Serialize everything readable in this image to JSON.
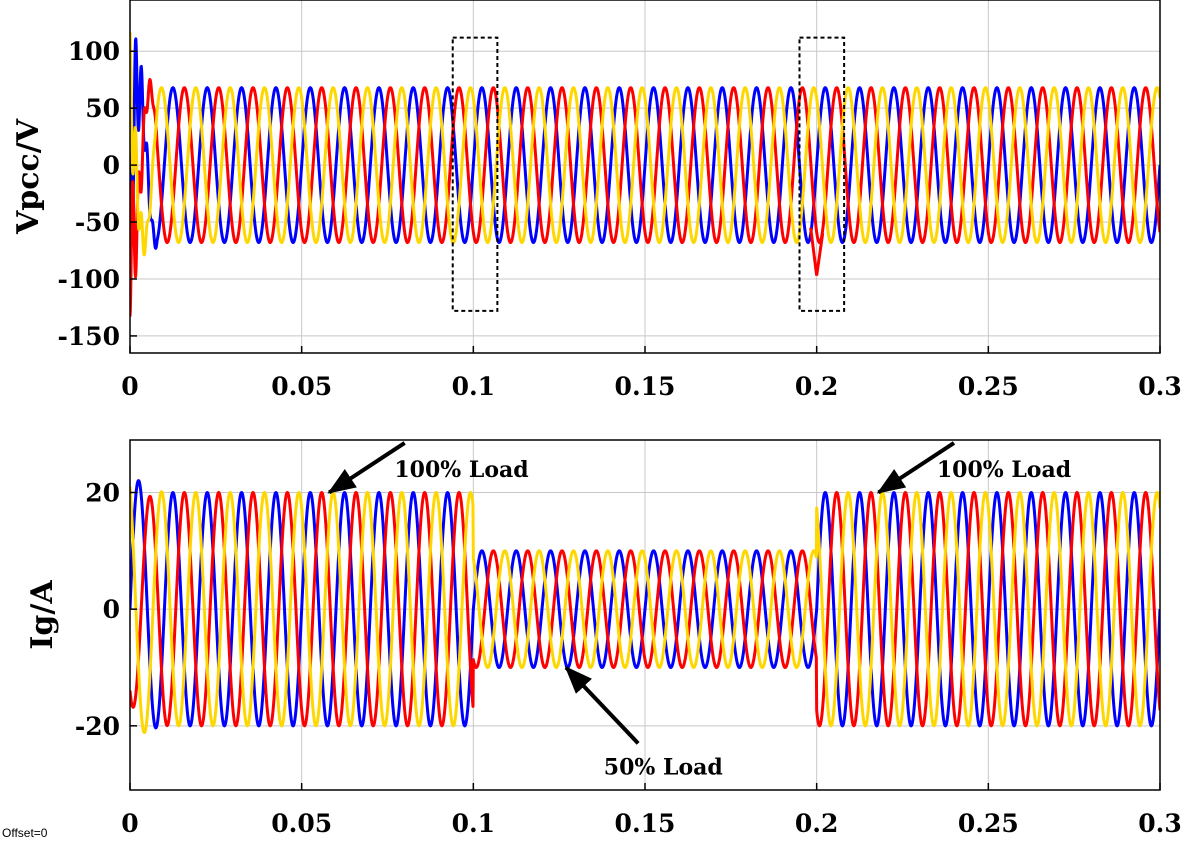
{
  "footer": {
    "offset_text": "Offset=0"
  },
  "colors": {
    "phase_a": "#0000ff",
    "phase_b": "#ff0000",
    "phase_c": "#ffd700",
    "grid": "#c8c8c8",
    "axes": "#000000"
  },
  "chart_data": [
    {
      "type": "line",
      "title": "",
      "xlabel": "",
      "ylabel": "Vpcc/V",
      "xlim": [
        0,
        0.3
      ],
      "ylim": [
        -165,
        145
      ],
      "xticks": [
        0,
        0.05,
        0.1,
        0.15,
        0.2,
        0.25,
        0.3
      ],
      "xtick_labels": [
        "0",
        "0.05",
        "0.1",
        "0.15",
        "0.2",
        "0.25",
        "0.3"
      ],
      "yticks": [
        -150,
        -100,
        -50,
        0,
        50,
        100
      ],
      "ytick_labels": [
        "-150",
        "-100",
        "-50",
        "0",
        "50",
        "100"
      ],
      "grid": true,
      "frequency_hz": 100,
      "series": [
        {
          "color": "#0000ff",
          "phase_deg": 0,
          "segments": [
            {
              "t": [
                0,
                0.3
              ],
              "amplitude": 68
            }
          ],
          "startup_transient_peak": 102
        },
        {
          "color": "#ff0000",
          "phase_deg": -120,
          "segments": [
            {
              "t": [
                0,
                0.3
              ],
              "amplitude": 68
            }
          ],
          "startup_transient_peak": -133
        },
        {
          "color": "#ffd700",
          "phase_deg": 120,
          "segments": [
            {
              "t": [
                0,
                0.3
              ],
              "amplitude": 68
            }
          ],
          "startup_transient_peak": 117
        }
      ],
      "highlight_boxes": [
        {
          "x": [
            0.094,
            0.107
          ],
          "y": [
            -128,
            112
          ]
        },
        {
          "x": [
            0.195,
            0.208
          ],
          "y": [
            -128,
            112
          ]
        }
      ],
      "transient_dips": [
        {
          "t": 0.2,
          "min": -97
        }
      ]
    },
    {
      "type": "line",
      "title": "",
      "xlabel": "",
      "ylabel": "Ig/A",
      "xlim": [
        0,
        0.3
      ],
      "ylim": [
        -31,
        29
      ],
      "xticks": [
        0,
        0.05,
        0.1,
        0.15,
        0.2,
        0.25,
        0.3
      ],
      "xtick_labels": [
        "0",
        "0.05",
        "0.1",
        "0.15",
        "0.2",
        "0.25",
        "0.3"
      ],
      "yticks": [
        -20,
        0,
        20
      ],
      "ytick_labels": [
        "-20",
        "0",
        "20"
      ],
      "grid": true,
      "frequency_hz": 100,
      "series": [
        {
          "color": "#0000ff",
          "phase_deg": 0,
          "segments": [
            {
              "t": [
                0,
                0.1
              ],
              "amplitude": 20
            },
            {
              "t": [
                0.1,
                0.2
              ],
              "amplitude": 10
            },
            {
              "t": [
                0.2,
                0.3
              ],
              "amplitude": 20
            }
          ]
        },
        {
          "color": "#ff0000",
          "phase_deg": -120,
          "segments": [
            {
              "t": [
                0,
                0.1
              ],
              "amplitude": 20
            },
            {
              "t": [
                0.1,
                0.2
              ],
              "amplitude": 10
            },
            {
              "t": [
                0.2,
                0.3
              ],
              "amplitude": 20
            }
          ]
        },
        {
          "color": "#ffd700",
          "phase_deg": 120,
          "segments": [
            {
              "t": [
                0,
                0.1
              ],
              "amplitude": 20
            },
            {
              "t": [
                0.1,
                0.2
              ],
              "amplitude": 10
            },
            {
              "t": [
                0.2,
                0.3
              ],
              "amplitude": 20
            }
          ]
        }
      ],
      "annotations": [
        {
          "text": "100% Load",
          "target": [
            0.058,
            20
          ],
          "arrow_from": [
            0.08,
            28.5
          ],
          "text_at": [
            0.077,
            24
          ]
        },
        {
          "text": "100% Load",
          "target": [
            0.218,
            20
          ],
          "arrow_from": [
            0.24,
            28.5
          ],
          "text_at": [
            0.235,
            24
          ]
        },
        {
          "text": "50% Load",
          "target": [
            0.127,
            -10
          ],
          "arrow_from": [
            0.148,
            -23
          ],
          "text_at": [
            0.138,
            -27
          ]
        }
      ]
    }
  ]
}
